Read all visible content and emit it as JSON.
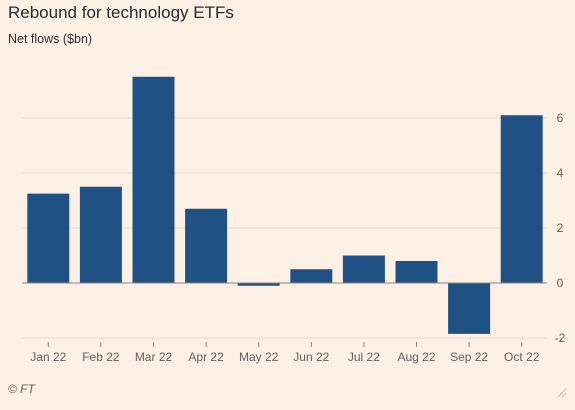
{
  "chart_data": {
    "type": "bar",
    "title": "Rebound for technology ETFs",
    "subtitle": "Net flows ($bn)",
    "xlabel": "",
    "ylabel": "",
    "categories": [
      "Jan 22",
      "Feb 22",
      "Mar 22",
      "Apr 22",
      "May 22",
      "Jun 22",
      "Jul 22",
      "Aug 22",
      "Sep 22",
      "Oct 22"
    ],
    "values": [
      3.25,
      3.5,
      7.5,
      2.7,
      -0.1,
      0.5,
      1.0,
      0.8,
      -1.85,
      6.1
    ],
    "ylim": [
      -2,
      8
    ],
    "yticks": [
      -2,
      0,
      2,
      4,
      6
    ],
    "ytick_labels": [
      "-2",
      "0",
      "2",
      "4",
      "6"
    ],
    "y_axis_side": "right",
    "grid": true,
    "legend": "none",
    "bar_color": "#1f5185"
  },
  "source": "© FT"
}
